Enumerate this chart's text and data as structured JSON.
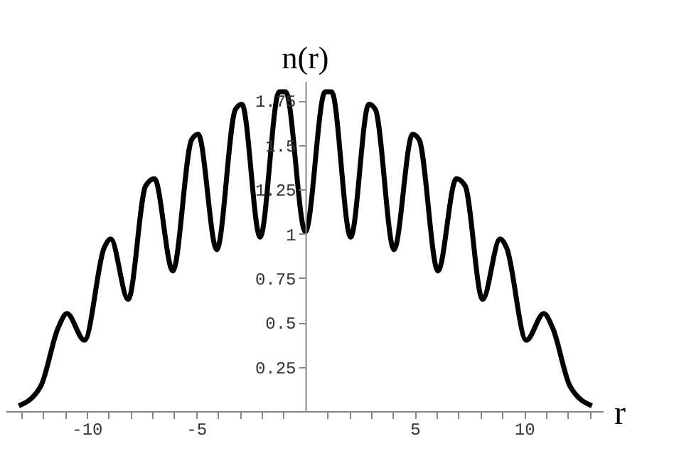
{
  "chart_data": {
    "type": "line",
    "xlabel": "r",
    "ylabel": "n(r)",
    "series": [
      {
        "color": "#000000",
        "x": [
          -13.1,
          -12.1,
          -11.3,
          -10.9,
          -10.1,
          -9.2,
          -8.9,
          -8.1,
          -7.3,
          -6.9,
          -6.06,
          -5.2,
          -4.9,
          -4.05,
          -3.2,
          -2.9,
          -2.07,
          -1.2,
          -0.9,
          0,
          0.9,
          1.2,
          2.07,
          2.9,
          3.2,
          4.05,
          4.9,
          5.2,
          6.06,
          6.9,
          7.3,
          8.1,
          8.9,
          9.2,
          10.1,
          10.9,
          11.3,
          12.1,
          13.1
        ],
        "values": [
          0.03,
          0.14,
          0.47,
          0.55,
          0.4,
          0.92,
          0.97,
          0.63,
          1.27,
          1.31,
          0.79,
          1.53,
          1.56,
          0.91,
          1.7,
          1.73,
          0.98,
          1.8,
          1.8,
          1.01,
          1.8,
          1.8,
          0.98,
          1.73,
          1.7,
          0.91,
          1.56,
          1.53,
          0.79,
          1.31,
          1.27,
          0.63,
          0.97,
          0.92,
          0.4,
          0.55,
          0.47,
          0.14,
          0.03
        ]
      }
    ],
    "xlim": [
      -13.7,
      13.6
    ],
    "ylim": [
      0,
      1.86
    ],
    "xticks": [
      {
        "value": -13,
        "label": null
      },
      {
        "value": -12,
        "label": null
      },
      {
        "value": -11,
        "label": null
      },
      -10,
      {
        "value": -9,
        "label": null
      },
      {
        "value": -8,
        "label": null
      },
      {
        "value": -7,
        "label": null
      },
      {
        "value": -6,
        "label": null
      },
      -5,
      {
        "value": -4,
        "label": null
      },
      {
        "value": -3,
        "label": null
      },
      {
        "value": -2,
        "label": null
      },
      {
        "value": -1,
        "label": null
      },
      {
        "value": 1,
        "label": null
      },
      {
        "value": 2,
        "label": null
      },
      {
        "value": 3,
        "label": null
      },
      {
        "value": 4,
        "label": null
      },
      5,
      {
        "value": 6,
        "label": null
      },
      {
        "value": 7,
        "label": null
      },
      {
        "value": 8,
        "label": null
      },
      {
        "value": 9,
        "label": null
      },
      10,
      {
        "value": 11,
        "label": null
      },
      {
        "value": 12,
        "label": null
      },
      {
        "value": 13,
        "label": null
      }
    ],
    "yticks": [
      0.25,
      0.5,
      0.75,
      1,
      1.25,
      1.5,
      1.75
    ],
    "grid": false,
    "marker": "none",
    "line_style": "solid"
  }
}
